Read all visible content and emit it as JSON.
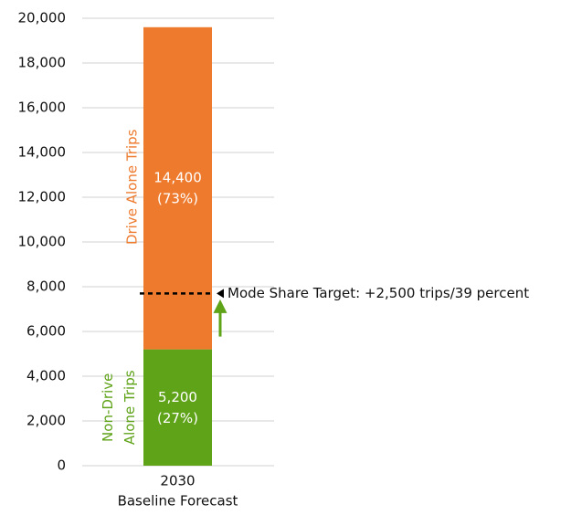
{
  "chart_data": {
    "type": "stacked_bar",
    "categories": [
      "2030"
    ],
    "x_label": "Baseline Forecast",
    "series": [
      {
        "name": "Non-Drive Alone Trips",
        "color": "#5fa319",
        "values": [
          5200
        ],
        "value_labels": [
          "5,200"
        ],
        "share_labels": [
          "(27%)"
        ]
      },
      {
        "name": "Drive Alone Trips",
        "color": "#ed7a2d",
        "values": [
          14400
        ],
        "value_labels": [
          "14,400"
        ],
        "share_labels": [
          "(73%)"
        ]
      }
    ],
    "target": {
      "value": 7700,
      "label": "Mode Share Target: +2,500 trips/39 percent"
    },
    "ylim": [
      0,
      20000
    ],
    "yticks": [
      {
        "value": 0,
        "label": "0"
      },
      {
        "value": 2000,
        "label": "2,000"
      },
      {
        "value": 4000,
        "label": "4,000"
      },
      {
        "value": 6000,
        "label": "6,000"
      },
      {
        "value": 8000,
        "label": "8,000"
      },
      {
        "value": 10000,
        "label": "10,000"
      },
      {
        "value": 12000,
        "label": "12,000"
      },
      {
        "value": 14000,
        "label": "14,000"
      },
      {
        "value": 16000,
        "label": "16,000"
      },
      {
        "value": 18000,
        "label": "18,000"
      },
      {
        "value": 20000,
        "label": "20,000"
      }
    ],
    "grid": true
  }
}
